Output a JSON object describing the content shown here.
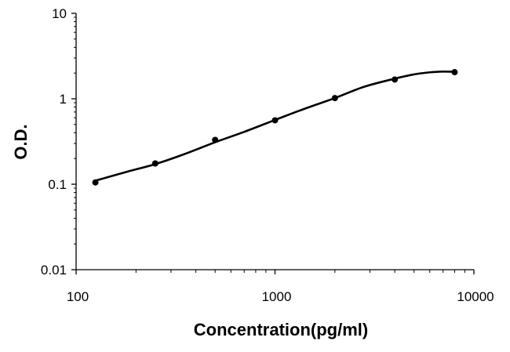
{
  "chart_data": {
    "type": "line",
    "title": "",
    "xlabel": "Concentration(pg/ml)",
    "ylabel": "O.D.",
    "xscale": "log",
    "yscale": "log",
    "xlim": [
      100,
      10000
    ],
    "ylim": [
      0.01,
      10
    ],
    "grid": false,
    "legend": "none",
    "xticks": [
      "100",
      "1000",
      "10000"
    ],
    "yticks": [
      "0.01",
      "0.1",
      "1",
      "10"
    ],
    "series": [
      {
        "x": [
          125,
          250,
          500,
          1000,
          2000,
          4000,
          8000
        ],
        "y": [
          0.105,
          0.175,
          0.33,
          0.56,
          1.02,
          1.68,
          2.05
        ]
      }
    ],
    "curve": {
      "x": [
        125,
        180,
        250,
        350,
        500,
        700,
        1000,
        1400,
        2000,
        2800,
        4000,
        5000,
        6000,
        7000,
        8000
      ],
      "y": [
        0.11,
        0.14,
        0.172,
        0.225,
        0.31,
        0.41,
        0.565,
        0.76,
        1.02,
        1.38,
        1.72,
        1.93,
        2.04,
        2.08,
        2.07
      ]
    },
    "colors": {
      "line": "#000000",
      "marker": "#000000",
      "axis": "#000000"
    }
  }
}
